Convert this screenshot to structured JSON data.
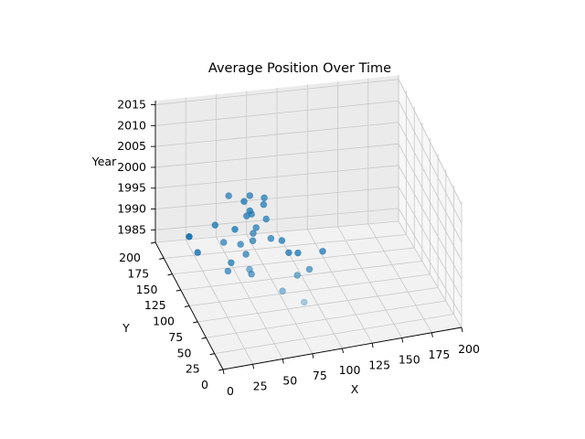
{
  "chart_data": {
    "type": "scatter",
    "projection": "3d",
    "title": "Average Position Over Time",
    "xlabel": "X",
    "ylabel": "Y",
    "zlabel": "Year",
    "xlim": [
      0,
      200
    ],
    "ylim": [
      0,
      200
    ],
    "zlim": [
      1982,
      2016
    ],
    "xticks": [
      "0",
      "25",
      "50",
      "75",
      "100",
      "125",
      "150",
      "175",
      "200"
    ],
    "yticks": [
      "0",
      "25",
      "50",
      "75",
      "100",
      "125",
      "150",
      "175",
      "200"
    ],
    "zticks": [
      "1985",
      "1990",
      "1995",
      "2000",
      "2005",
      "2010",
      "2015"
    ],
    "grid": true,
    "marker_color": "#1f77b4",
    "points": [
      {
        "x": 84,
        "y": 58,
        "z": 1986
      },
      {
        "x": 72,
        "y": 80,
        "z": 1986
      },
      {
        "x": 90,
        "y": 101,
        "z": 1986
      },
      {
        "x": 102,
        "y": 108,
        "z": 1986
      },
      {
        "x": 120,
        "y": 134,
        "z": 1986
      },
      {
        "x": 55,
        "y": 112,
        "z": 1986
      },
      {
        "x": 100,
        "y": 136,
        "z": 1986
      },
      {
        "x": 38,
        "y": 121,
        "z": 1986
      },
      {
        "x": 22,
        "y": 154,
        "z": 1986
      },
      {
        "x": 93,
        "y": 138,
        "z": 1986
      },
      {
        "x": 44,
        "y": 133,
        "z": 1986
      },
      {
        "x": 22,
        "y": 179,
        "z": 1986
      },
      {
        "x": 49,
        "y": 96,
        "z": 1990
      },
      {
        "x": 86,
        "y": 133,
        "z": 1990
      },
      {
        "x": 54,
        "y": 125,
        "z": 1989
      },
      {
        "x": 75,
        "y": 126,
        "z": 1992
      },
      {
        "x": 60,
        "y": 126,
        "z": 1992
      },
      {
        "x": 49,
        "y": 123,
        "z": 1992
      },
      {
        "x": 35,
        "y": 123,
        "z": 1993
      },
      {
        "x": 49,
        "y": 140,
        "z": 1993
      },
      {
        "x": 60,
        "y": 125,
        "z": 1994
      },
      {
        "x": 32,
        "y": 138,
        "z": 1995
      },
      {
        "x": 63,
        "y": 127,
        "z": 1995
      },
      {
        "x": 57,
        "y": 134,
        "z": 1997
      },
      {
        "x": 71,
        "y": 126,
        "z": 1997
      },
      {
        "x": 60,
        "y": 135,
        "z": 1998
      },
      {
        "x": 60,
        "y": 130,
        "z": 1998
      },
      {
        "x": 56,
        "y": 138,
        "z": 2000
      },
      {
        "x": 70,
        "y": 130,
        "z": 2000
      },
      {
        "x": 70,
        "y": 128,
        "z": 2002
      },
      {
        "x": 58,
        "y": 128,
        "z": 2003
      },
      {
        "x": 40,
        "y": 126,
        "z": 2004
      }
    ]
  }
}
